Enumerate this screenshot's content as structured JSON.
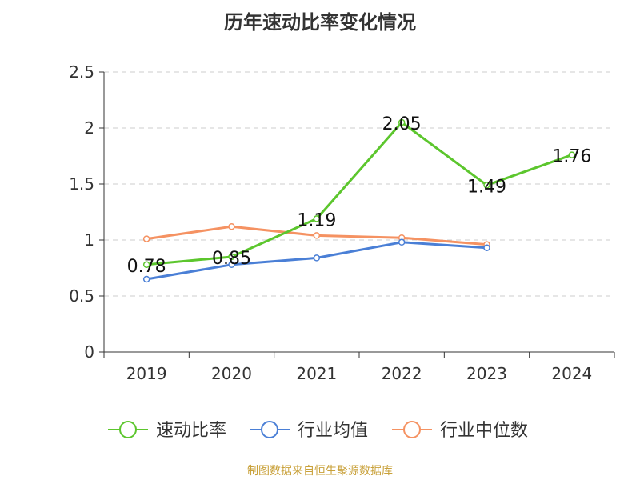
{
  "title": "历年速动比率变化情况",
  "source": "制图数据来自恒生聚源数据库",
  "colors": {
    "series_main": "#5cc62d",
    "series_avg": "#4a7fd6",
    "series_median": "#f59262",
    "grid": "#cccccc",
    "axis": "#333333",
    "text": "#333333",
    "source": "#c9a13a"
  },
  "chart_data": {
    "type": "line",
    "x": [
      "2019",
      "2020",
      "2021",
      "2022",
      "2023",
      "2024"
    ],
    "ylim": [
      0,
      2.5
    ],
    "yticks": [
      "0",
      "0.5",
      "1",
      "1.5",
      "2",
      "2.5"
    ],
    "grid": true,
    "legend_position": "bottom",
    "series": [
      {
        "name": "速动比率",
        "color": "#5cc62d",
        "values": [
          0.78,
          0.85,
          1.19,
          2.05,
          1.49,
          1.76
        ],
        "labels": [
          "0.78",
          "0.85",
          "1.19",
          "2.05",
          "1.49",
          "1.76"
        ]
      },
      {
        "name": "行业均值",
        "color": "#4a7fd6",
        "values": [
          0.65,
          0.78,
          0.84,
          0.98,
          0.93,
          null
        ]
      },
      {
        "name": "行业中位数",
        "color": "#f59262",
        "values": [
          1.01,
          1.12,
          1.04,
          1.02,
          0.96,
          null
        ]
      }
    ]
  }
}
